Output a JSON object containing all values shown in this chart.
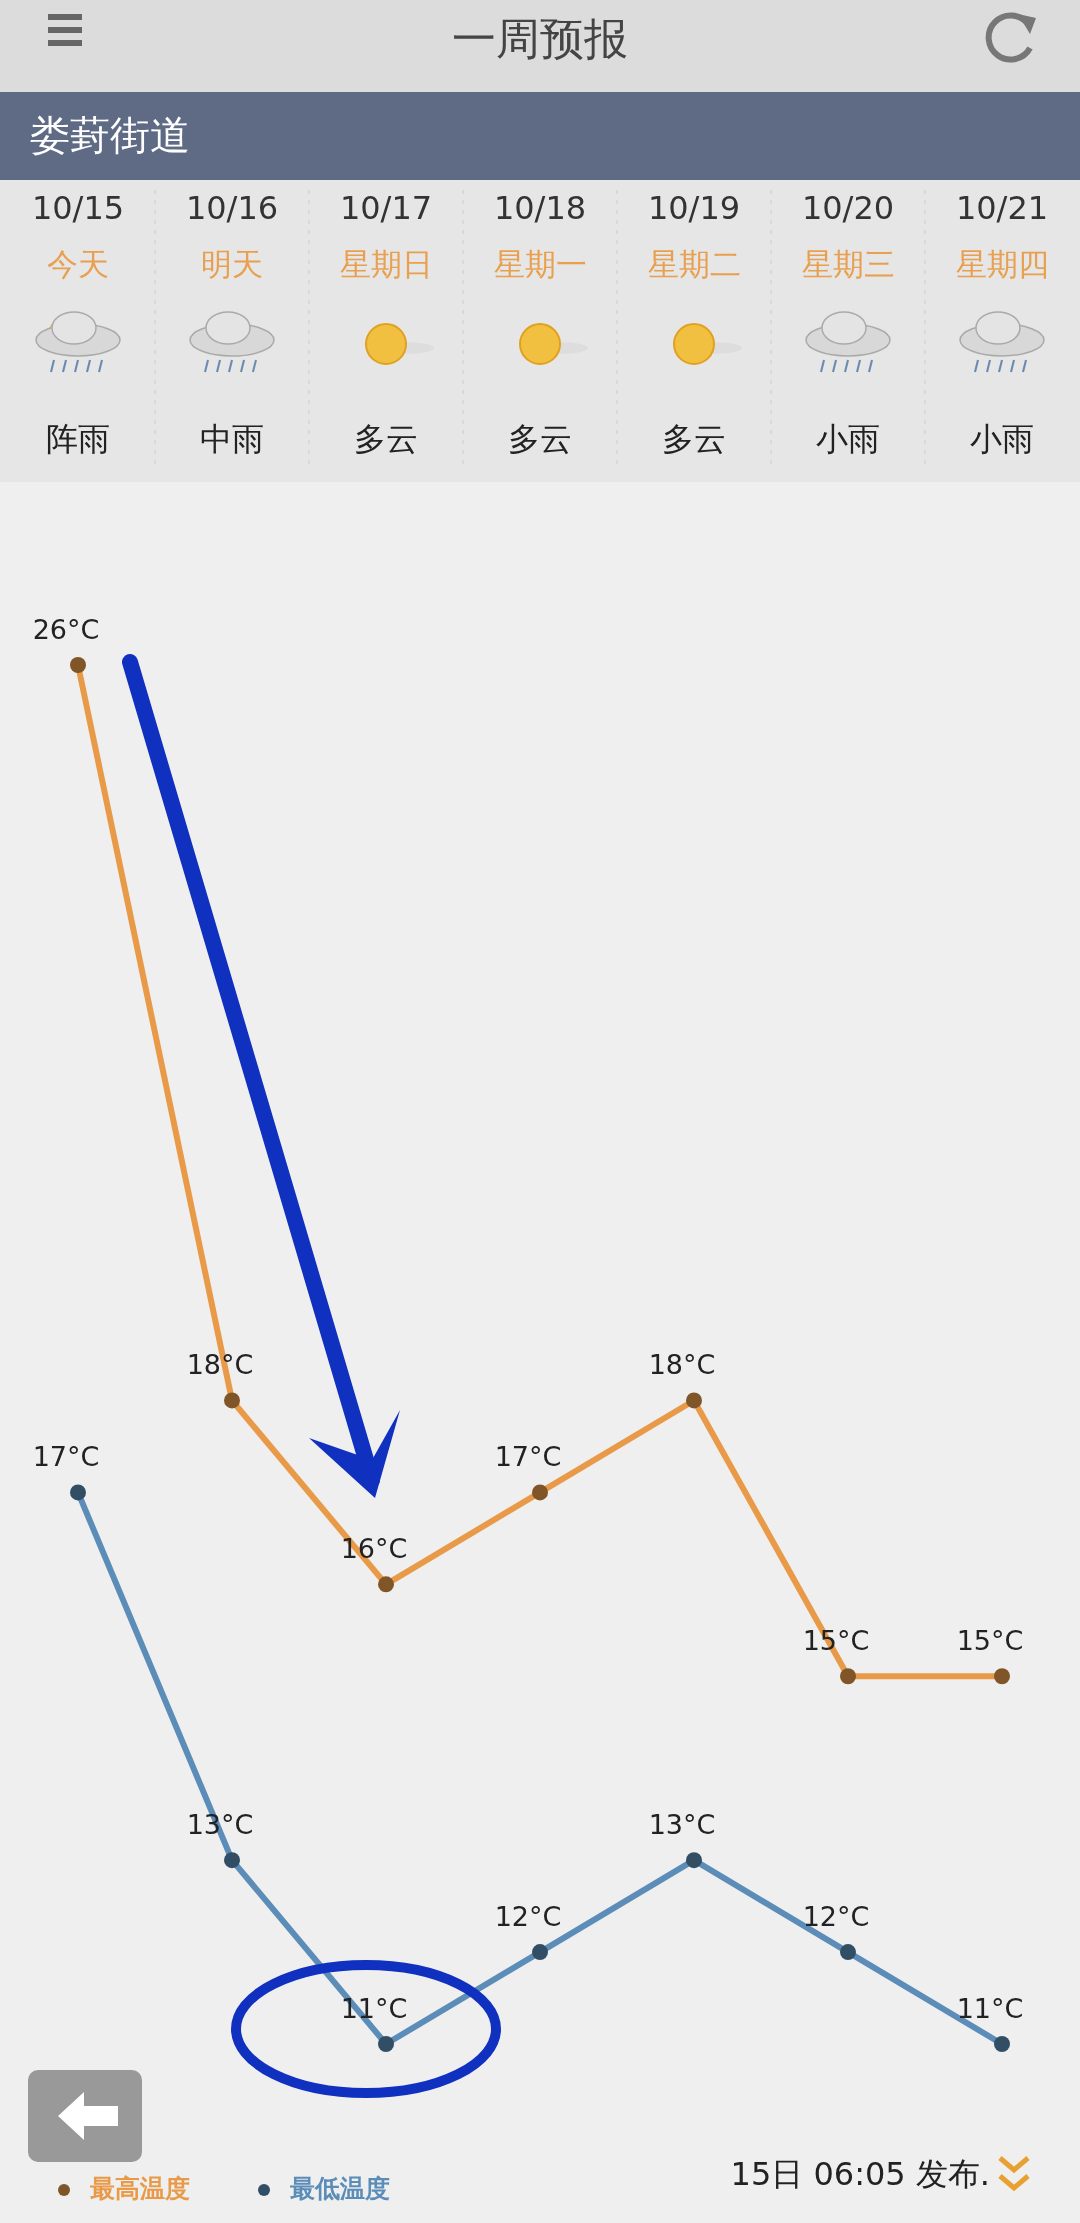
{
  "chart_data": {
    "type": "line",
    "title": "一周预报",
    "subtitle": "娄葑街道",
    "categories": [
      "10/15",
      "10/16",
      "10/17",
      "10/18",
      "10/19",
      "10/20",
      "10/21"
    ],
    "series": [
      {
        "name": "最高温度",
        "color": "#e89a48",
        "values": [
          26,
          18,
          16,
          17,
          18,
          15,
          15
        ],
        "value_labels": [
          "26°C",
          "18°C",
          "16°C",
          "17°C",
          "18°C",
          "15°C",
          "15°C"
        ]
      },
      {
        "name": "最低温度",
        "color": "#5b8db8",
        "values": [
          17,
          13,
          11,
          12,
          13,
          12,
          11
        ],
        "value_labels": [
          "17°C",
          "13°C",
          "11°C",
          "12°C",
          "13°C",
          "12°C",
          "11°C"
        ]
      }
    ],
    "marker": "circle",
    "legend": "bottom left",
    "grid": false,
    "annotations": [
      "今天",
      "明天",
      "星期日",
      "星期一",
      "星期二",
      "星期三",
      "星期四",
      "阵雨",
      "中雨",
      "多云",
      "多云",
      "多云",
      "小雨",
      "小雨",
      "15日 06:05 发布."
    ]
  }
}
